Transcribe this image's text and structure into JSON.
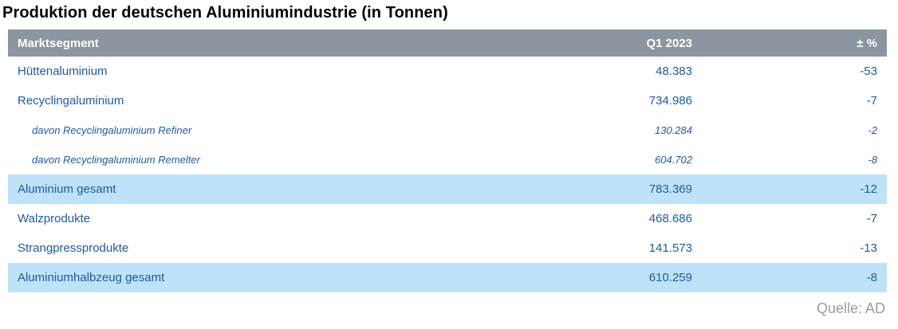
{
  "title": "Produktion der deutschen Aluminiumindustrie (in Tonnen)",
  "table": {
    "columns": [
      "Marktsegment",
      "Q1 2023",
      "± %"
    ],
    "rows": [
      {
        "label": "Hüttenaluminium",
        "q1": "48.383",
        "pct": "-53",
        "type": "normal"
      },
      {
        "label": "Recyclingaluminium",
        "q1": "734.986",
        "pct": "-7",
        "type": "normal"
      },
      {
        "label": "davon Recyclingaluminium Refiner",
        "q1": "130.284",
        "pct": "-2",
        "type": "sub"
      },
      {
        "label": "davon Recyclingaluminium Remelter",
        "q1": "604.702",
        "pct": "-8",
        "type": "sub"
      },
      {
        "label": "Aluminium gesamt",
        "q1": "783.369",
        "pct": "-12",
        "type": "highlight"
      },
      {
        "label": "Walzprodukte",
        "q1": "468.686",
        "pct": "-7",
        "type": "normal"
      },
      {
        "label": "Strangpressprodukte",
        "q1": "141.573",
        "pct": "-13",
        "type": "normal"
      },
      {
        "label": "Aluminiumhalbzeug gesamt",
        "q1": "610.259",
        "pct": "-8",
        "type": "highlight"
      }
    ]
  },
  "source": "Quelle: AD",
  "colors": {
    "header_bg": "#8C96A1",
    "highlight_bg": "#BEE3F8",
    "text_blue": "#1F5AA8",
    "source_gray": "#9C9C9C",
    "title_black": "#000000"
  },
  "chart_data": {
    "type": "table",
    "title": "Produktion der deutschen Aluminiumindustrie (in Tonnen)",
    "columns": [
      "Marktsegment",
      "Q1 2023",
      "± %"
    ],
    "rows": [
      [
        "Hüttenaluminium",
        48383,
        -53
      ],
      [
        "Recyclingaluminium",
        734986,
        -7
      ],
      [
        "davon Recyclingaluminium Refiner",
        130284,
        -2
      ],
      [
        "davon Recyclingaluminium Remelter",
        604702,
        -8
      ],
      [
        "Aluminium gesamt",
        783369,
        -12
      ],
      [
        "Walzprodukte",
        468686,
        -7
      ],
      [
        "Strangpressprodukte",
        141573,
        -13
      ],
      [
        "Aluminiumhalbzeug gesamt",
        610259,
        -8
      ]
    ],
    "highlighted_rows": [
      "Aluminium gesamt",
      "Aluminiumhalbzeug gesamt"
    ],
    "indented_italic_rows": [
      "davon Recyclingaluminium Refiner",
      "davon Recyclingaluminium Remelter"
    ],
    "source": "Quelle: AD"
  }
}
